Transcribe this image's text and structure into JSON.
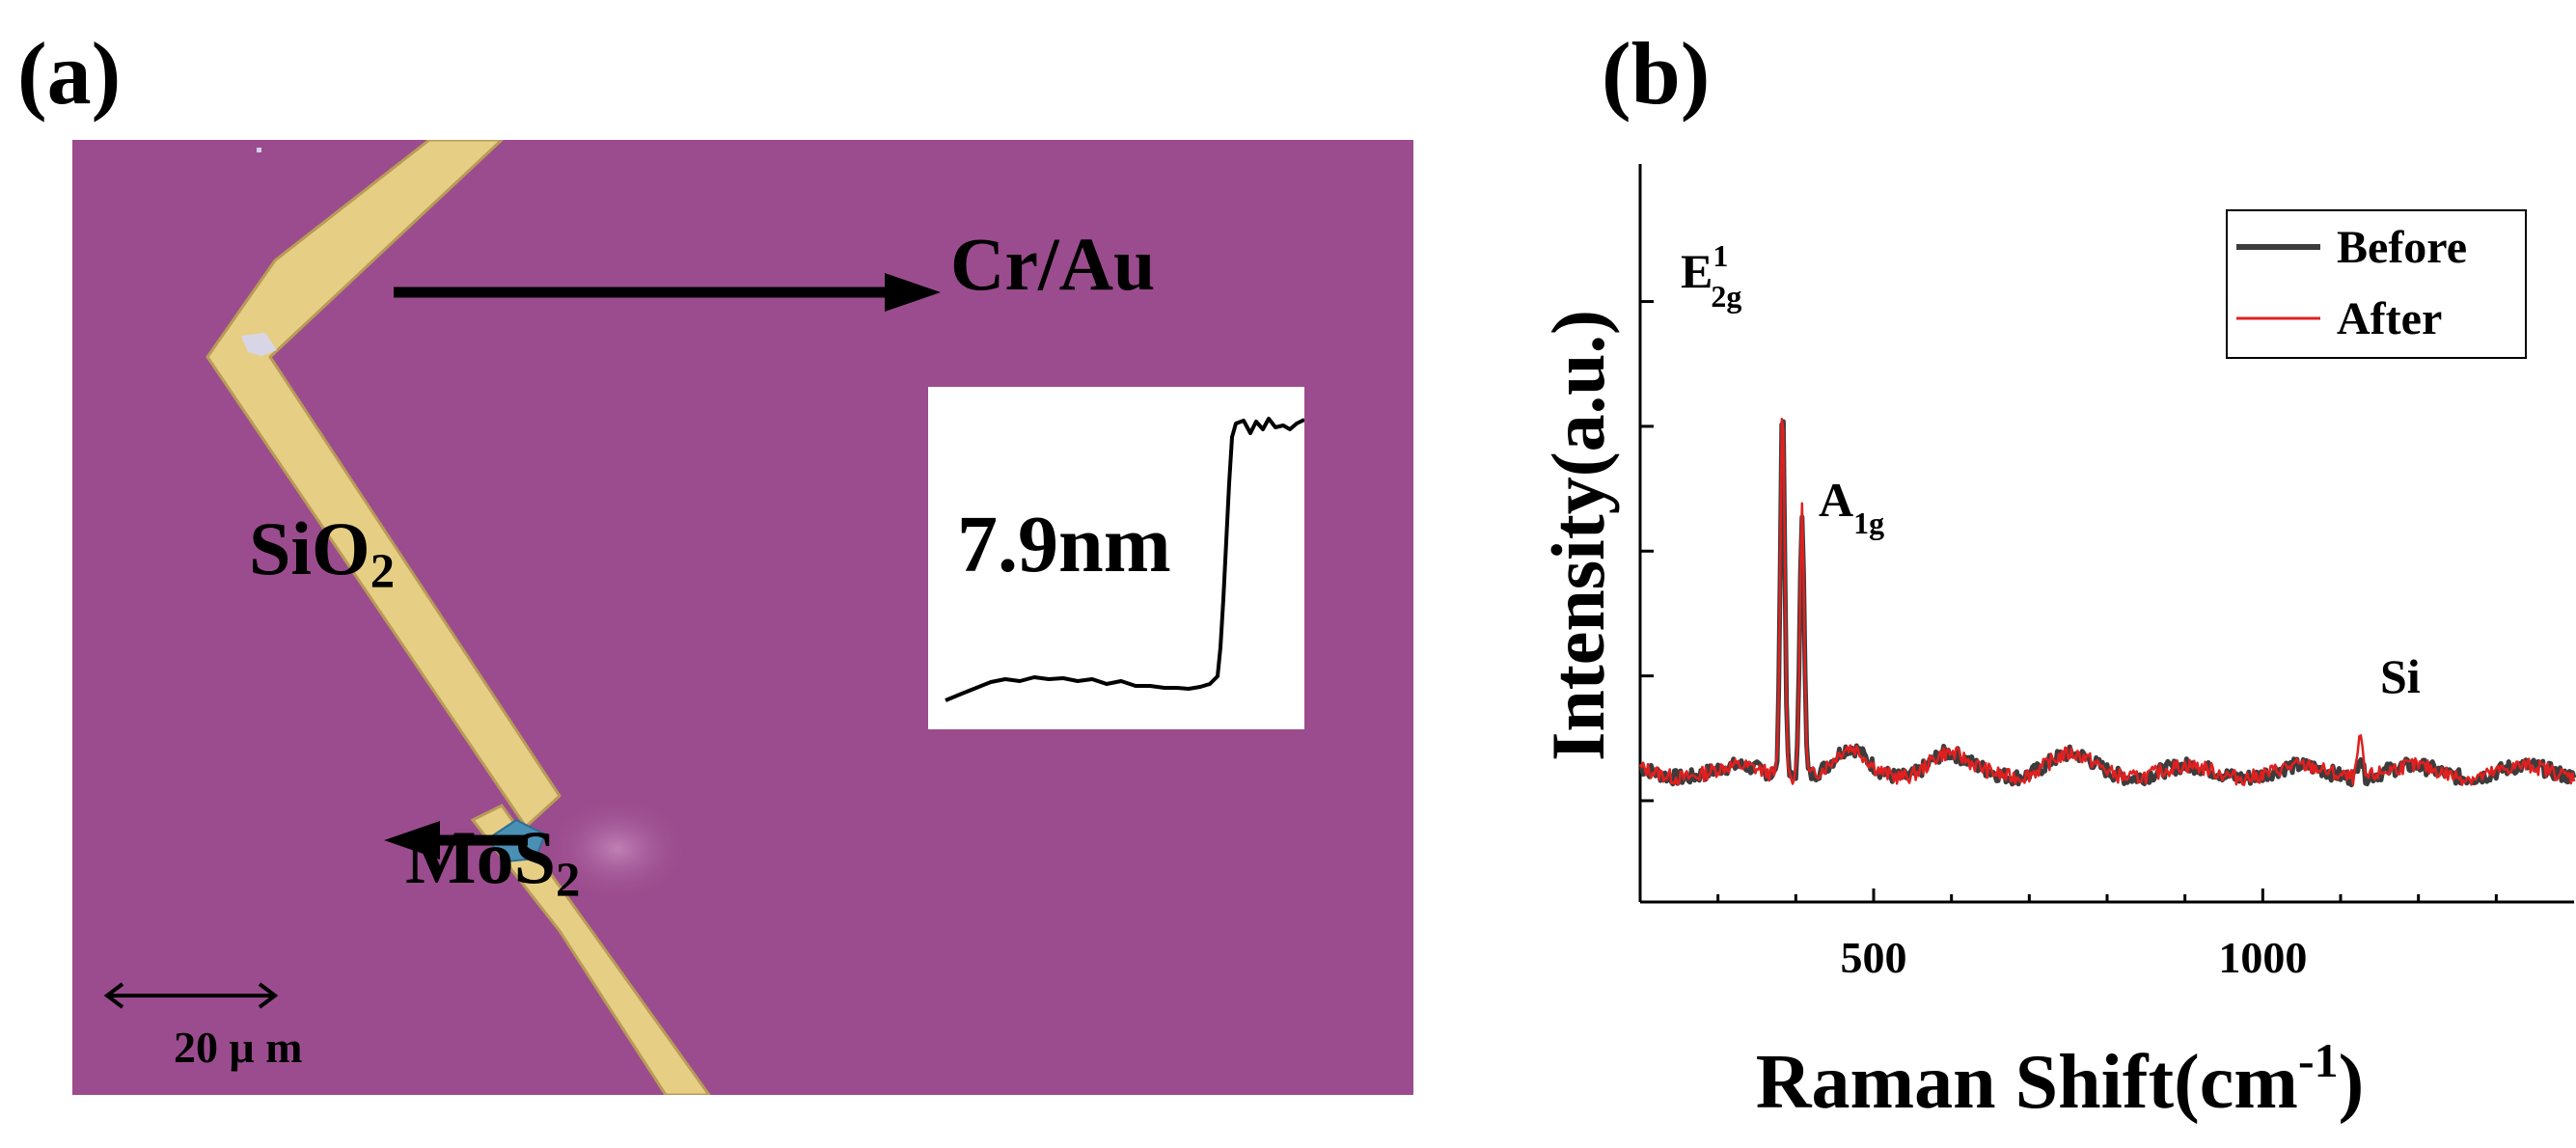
{
  "panels": {
    "a": {
      "label": "(a)",
      "substrate_label": "SiO",
      "substrate_sub": "2",
      "electrode_label": "Cr/Au",
      "flake_label": "MoS",
      "flake_sub": "2",
      "scale_bar_label": "20 μ m",
      "inset": {
        "step_height_label": "7.9nm"
      }
    },
    "b": {
      "label": "(b)"
    }
  },
  "chart_data": {
    "type": "line",
    "xlabel": "Raman Shift(cm",
    "xlabel_sup": "-1",
    "xlabel_close": ")",
    "ylabel": "Intensity(a.u.)",
    "xlim": [
      200,
      1400
    ],
    "ylim": [
      0,
      1
    ],
    "x_ticks": [
      500,
      1000
    ],
    "grid": false,
    "legend_position": "top-right",
    "series": [
      {
        "name": "Before",
        "color": "#3c3c3c",
        "peaks": [
          {
            "x": 383,
            "height": 0.62
          },
          {
            "x": 408,
            "height": 0.44
          },
          {
            "x": 1125,
            "height": 0.04
          }
        ]
      },
      {
        "name": "After",
        "color": "#e02020",
        "peaks": [
          {
            "x": 383,
            "height": 0.62
          },
          {
            "x": 408,
            "height": 0.44
          },
          {
            "x": 1125,
            "height": 0.07
          }
        ]
      }
    ],
    "annotations": [
      {
        "base": "E",
        "sup": "1",
        "sub": "2g"
      },
      {
        "base": "A",
        "sub": "1g"
      },
      {
        "base": "Si"
      }
    ]
  }
}
